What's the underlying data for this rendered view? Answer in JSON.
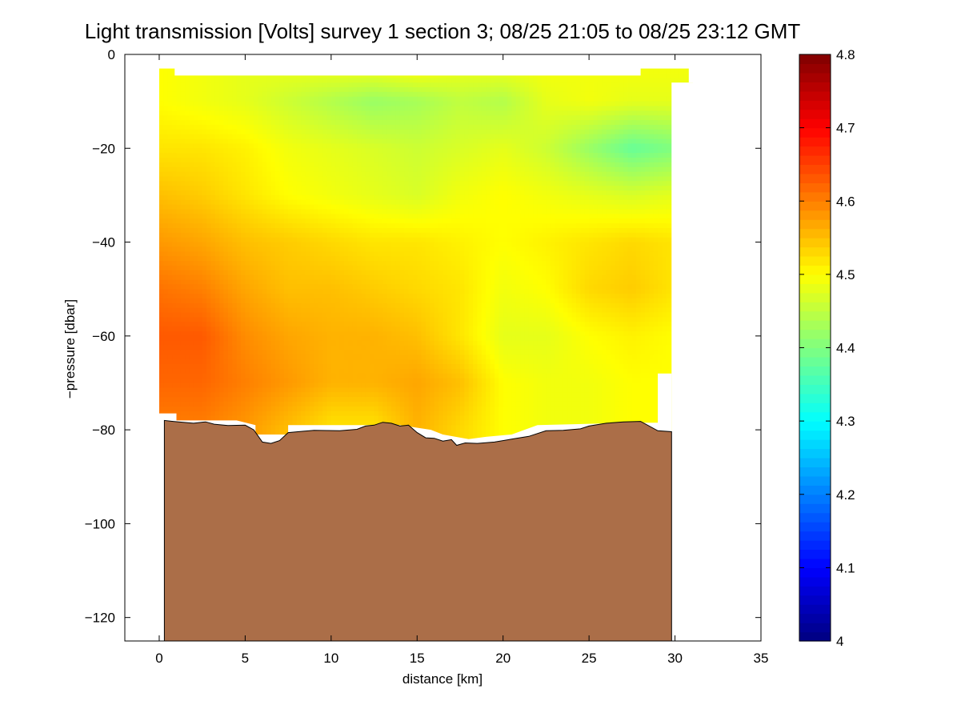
{
  "chart_data": {
    "type": "heatmap",
    "title": "Light transmission [Volts] survey 1 section 3; 08/25 21:05 to 08/25 23:12 GMT",
    "xlabel": "distance [km]",
    "ylabel": "−pressure [dbar]",
    "xlim": [
      -2,
      35
    ],
    "ylim": [
      -125,
      0
    ],
    "x_ticks": [
      0,
      5,
      10,
      15,
      20,
      25,
      30,
      35
    ],
    "y_ticks": [
      0,
      -20,
      -40,
      -60,
      -80,
      -100,
      -120
    ],
    "x_tick_labels": [
      "0",
      "5",
      "10",
      "15",
      "20",
      "25",
      "30",
      "35"
    ],
    "y_tick_labels": [
      "0",
      "−20",
      "−40",
      "−60",
      "−80",
      "−100",
      "−120"
    ],
    "colorbar": {
      "colormap": "jet",
      "clim": [
        4.0,
        4.8
      ],
      "ticks": [
        4.0,
        4.1,
        4.2,
        4.3,
        4.4,
        4.5,
        4.6,
        4.7,
        4.8
      ],
      "tick_labels": [
        "4",
        "4.1",
        "4.2",
        "4.3",
        "4.4",
        "4.5",
        "4.6",
        "4.7",
        "4.8"
      ]
    },
    "field": {
      "x": [
        0,
        2.5,
        5,
        7.5,
        10,
        12.5,
        15,
        17.5,
        20,
        22.5,
        25,
        27.5,
        30
      ],
      "depth": [
        -4,
        -10,
        -20,
        -30,
        -40,
        -50,
        -60,
        -70,
        -80
      ],
      "values": [
        [
          4.5,
          4.49,
          4.48,
          4.48,
          4.48,
          4.48,
          4.49,
          4.48,
          4.48,
          4.49,
          4.49,
          4.49,
          4.49
        ],
        [
          4.5,
          4.49,
          4.48,
          4.46,
          4.44,
          4.42,
          4.43,
          4.45,
          4.44,
          4.48,
          4.49,
          4.48,
          4.48
        ],
        [
          4.52,
          4.52,
          4.51,
          4.49,
          4.48,
          4.47,
          4.46,
          4.47,
          4.48,
          4.46,
          4.42,
          4.38,
          4.4
        ],
        [
          4.55,
          4.54,
          4.52,
          4.5,
          4.49,
          4.48,
          4.47,
          4.49,
          4.5,
          4.49,
          4.48,
          4.47,
          4.48
        ],
        [
          4.58,
          4.57,
          4.55,
          4.54,
          4.53,
          4.52,
          4.52,
          4.51,
          4.5,
          4.51,
          4.52,
          4.53,
          4.52
        ],
        [
          4.61,
          4.6,
          4.57,
          4.55,
          4.55,
          4.54,
          4.53,
          4.52,
          4.49,
          4.5,
          4.53,
          4.54,
          4.52
        ],
        [
          4.63,
          4.63,
          4.59,
          4.57,
          4.56,
          4.56,
          4.55,
          4.52,
          4.48,
          4.48,
          4.5,
          4.51,
          4.5
        ],
        [
          4.62,
          4.62,
          4.6,
          4.58,
          4.56,
          4.56,
          4.57,
          4.55,
          4.5,
          4.49,
          4.49,
          4.5,
          4.5
        ],
        [
          4.6,
          4.6,
          4.58,
          4.55,
          4.52,
          4.52,
          4.56,
          4.53,
          4.5,
          4.49,
          4.49,
          4.5,
          4.5
        ]
      ]
    },
    "data_mask_top": [
      {
        "x": 0,
        "depth": -3
      },
      {
        "x": 0.9,
        "depth": -3
      },
      {
        "x": 0.9,
        "depth": -4.5
      },
      {
        "x": 28,
        "depth": -4.5
      },
      {
        "x": 28,
        "depth": -3
      },
      {
        "x": 30.8,
        "depth": -3
      },
      {
        "x": 30.8,
        "depth": -6
      },
      {
        "x": 29.8,
        "depth": -6
      }
    ],
    "data_mask_bottom": [
      {
        "x": 29.8,
        "depth": -68
      },
      {
        "x": 29,
        "depth": -68
      },
      {
        "x": 29,
        "depth": -78.5
      },
      {
        "x": 27.5,
        "depth": -78.5
      },
      {
        "x": 22,
        "depth": -79
      },
      {
        "x": 20.5,
        "depth": -81
      },
      {
        "x": 19,
        "depth": -81.5
      },
      {
        "x": 18,
        "depth": -82
      },
      {
        "x": 16.5,
        "depth": -81
      },
      {
        "x": 15.8,
        "depth": -80
      },
      {
        "x": 14,
        "depth": -79
      },
      {
        "x": 12,
        "depth": -79
      },
      {
        "x": 7.5,
        "depth": -79
      },
      {
        "x": 7.5,
        "depth": -81
      },
      {
        "x": 5.6,
        "depth": -81
      },
      {
        "x": 5.6,
        "depth": -79
      },
      {
        "x": 4.5,
        "depth": -78
      },
      {
        "x": 1,
        "depth": -78
      },
      {
        "x": 1,
        "depth": -76.5
      },
      {
        "x": 0,
        "depth": -76.5
      },
      {
        "x": 0,
        "depth": -73.5
      }
    ],
    "bathymetry": {
      "fill_color": "#ab6e48",
      "x": [
        0.3,
        0.8,
        2.0,
        2.7,
        3.2,
        4.0,
        5.0,
        5.5,
        6.0,
        6.5,
        7.0,
        7.5,
        9.0,
        10.5,
        11.5,
        12.0,
        12.5,
        13.0,
        13.5,
        14.0,
        14.5,
        15.0,
        15.5,
        16.0,
        16.5,
        17.0,
        17.3,
        17.8,
        18.5,
        19.5,
        20.5,
        21.5,
        22.5,
        23.5,
        24.5,
        25.0,
        26.0,
        27.0,
        28.0,
        29.0,
        29.8
      ],
      "depth": [
        -78,
        -78.2,
        -78.6,
        -78.3,
        -78.8,
        -79.1,
        -79.0,
        -80.0,
        -82.6,
        -82.9,
        -82.3,
        -80.6,
        -80.1,
        -80.2,
        -79.9,
        -79.2,
        -79.0,
        -78.4,
        -78.6,
        -79.2,
        -79.0,
        -80.6,
        -81.7,
        -81.8,
        -82.4,
        -82.1,
        -83.3,
        -82.8,
        -82.9,
        -82.6,
        -82.0,
        -81.4,
        -80.2,
        -80.1,
        -79.8,
        -79.2,
        -78.6,
        -78.3,
        -78.2,
        -80.2,
        -80.4
      ]
    }
  }
}
